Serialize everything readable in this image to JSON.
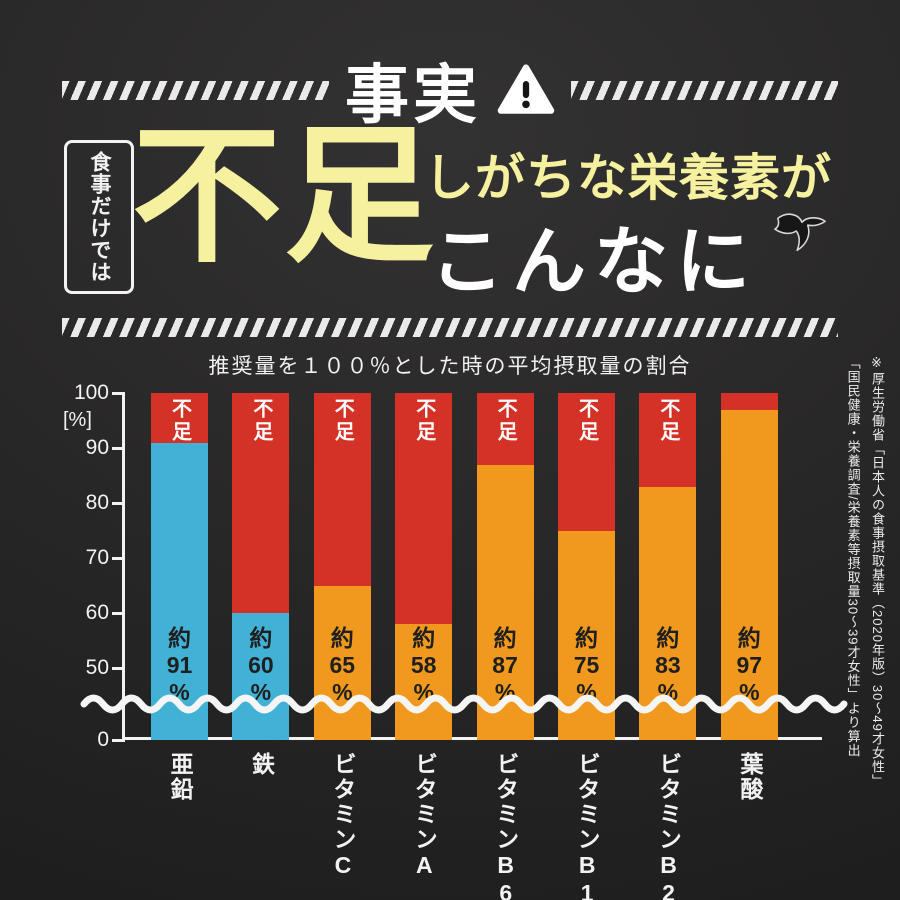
{
  "colors": {
    "background": "#262626",
    "highlight_yellow": "#f6f19e",
    "deficit_red": "#d53227",
    "bar_orange": "#f0991e",
    "bar_blue": "#41b1d6",
    "text_white": "#ffffff"
  },
  "header": {
    "fact_label": "事実",
    "warning_icon": "warning-triangle",
    "side_label": "食事だけでは",
    "big_word": "不足",
    "line1": "しがちな栄養素が",
    "line2": "こんなに",
    "bird_icon": "swallow-bird"
  },
  "chart_data": {
    "type": "bar",
    "title": "推奨量を１００％とした時の平均摂取量の割合",
    "unit_label": "[%]",
    "deficit_label": "不足",
    "ylim": [
      0,
      100
    ],
    "yticks": [
      100,
      90,
      80,
      70,
      60,
      50,
      0
    ],
    "axis_break": true,
    "legend_position": "none",
    "categories": [
      "亜鉛",
      "鉄",
      "ビタミンC",
      "ビタミンA",
      "ビタミンB6",
      "ビタミンB1",
      "ビタミンB2",
      "葉酸"
    ],
    "values": [
      91,
      60,
      65,
      58,
      87,
      75,
      83,
      97
    ],
    "value_labels": [
      "約91%",
      "約60%",
      "約65%",
      "約58%",
      "約87%",
      "約75%",
      "約83%",
      "約97%"
    ],
    "bar_colors": [
      "#41b1d6",
      "#41b1d6",
      "#f0991e",
      "#f0991e",
      "#f0991e",
      "#f0991e",
      "#f0991e",
      "#f0991e"
    ],
    "deficit_color": "#d53227",
    "show_deficit_label": [
      true,
      true,
      true,
      true,
      true,
      true,
      true,
      false
    ]
  },
  "source_note": {
    "line1": "※厚生労働省「日本人の食事摂取基準（2020年版）30〜49才女性」",
    "line2": "「国民健康・栄養調査/栄養素等摂取量30〜39才女性」より算出"
  }
}
